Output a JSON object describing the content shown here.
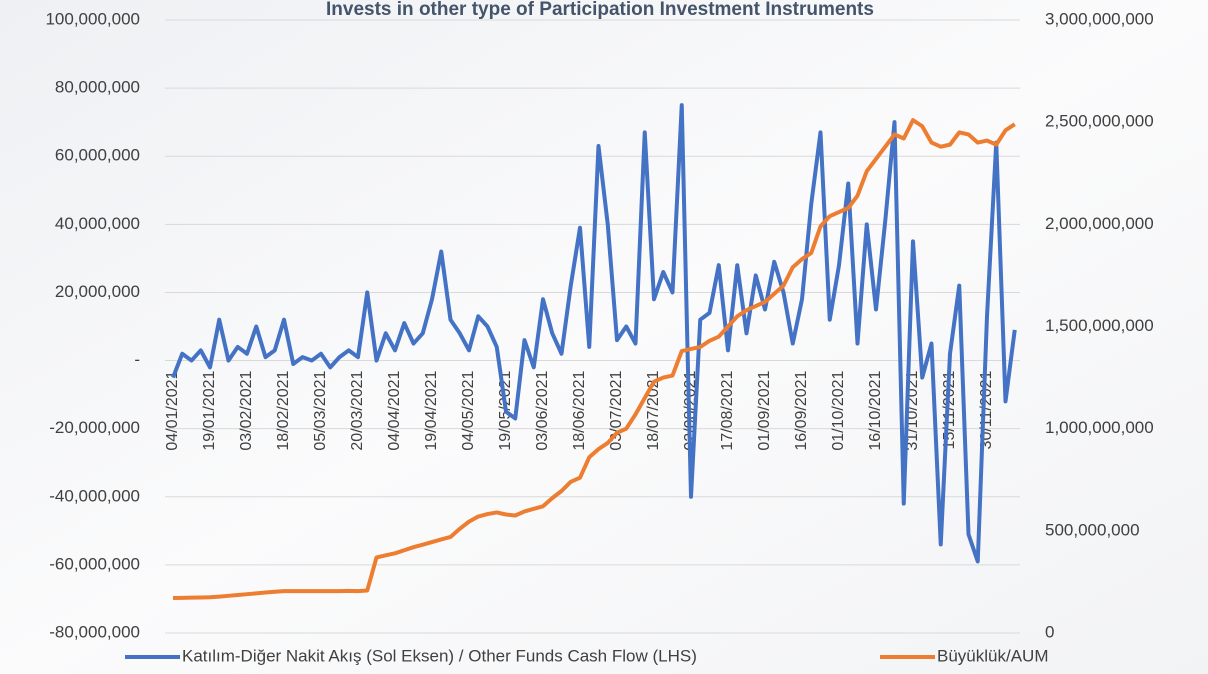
{
  "chart_data": {
    "type": "line",
    "title": "Invests in other type of Participation Investment Instruments",
    "categories": [
      "04/01/2021",
      null,
      null,
      null,
      "19/01/2021",
      null,
      null,
      null,
      "03/02/2021",
      null,
      null,
      null,
      "18/02/2021",
      null,
      null,
      null,
      "05/03/2021",
      null,
      null,
      null,
      "20/03/2021",
      null,
      null,
      null,
      "04/04/2021",
      null,
      null,
      null,
      "19/04/2021",
      null,
      null,
      null,
      "04/05/2021",
      null,
      null,
      null,
      "19/05/2021",
      null,
      null,
      null,
      "03/06/2021",
      null,
      null,
      null,
      "18/06/2021",
      null,
      null,
      null,
      "03/07/2021",
      null,
      null,
      null,
      "18/07/2021",
      null,
      null,
      null,
      "02/08/2021",
      null,
      null,
      null,
      "17/08/2021",
      null,
      null,
      null,
      "01/09/2021",
      null,
      null,
      null,
      "16/09/2021",
      null,
      null,
      null,
      "01/10/2021",
      null,
      null,
      null,
      "16/10/2021",
      null,
      null,
      null,
      "31/10/2021",
      null,
      null,
      null,
      "15/11/2021",
      null,
      null,
      null,
      "30/11/2021",
      null,
      null,
      null
    ],
    "series": [
      {
        "name": "Katılım-Diğer Nakit Akış (Sol Eksen) / Other Funds Cash Flow (LHS)",
        "color": "#4472c4",
        "axis": "y",
        "values": [
          -5000000,
          2000000,
          0,
          3000000,
          -2000000,
          12000000,
          0,
          4000000,
          2000000,
          10000000,
          1000000,
          3000000,
          12000000,
          -1000000,
          1000000,
          0,
          2000000,
          -2000000,
          1000000,
          3000000,
          1000000,
          20000000,
          0,
          8000000,
          3000000,
          11000000,
          5000000,
          8000000,
          18000000,
          32000000,
          12000000,
          8000000,
          3000000,
          13000000,
          10000000,
          4000000,
          -15000000,
          -17000000,
          6000000,
          -2000000,
          18000000,
          8000000,
          2000000,
          22000000,
          39000000,
          4000000,
          63000000,
          40000000,
          6000000,
          10000000,
          5000000,
          67000000,
          18000000,
          26000000,
          20000000,
          75000000,
          -40000000,
          12000000,
          14000000,
          28000000,
          3000000,
          28000000,
          8000000,
          25000000,
          15000000,
          29000000,
          20000000,
          5000000,
          18000000,
          46000000,
          67000000,
          12000000,
          28000000,
          52000000,
          5000000,
          40000000,
          15000000,
          41000000,
          70000000,
          -42000000,
          35000000,
          -5000000,
          5000000,
          -54000000,
          2000000,
          22000000,
          -51000000,
          -59000000,
          13000000,
          64000000,
          -12000000,
          9000000
        ]
      },
      {
        "name": "Büyüklük/AUM",
        "color": "#ed7d31",
        "axis": "y2",
        "values": [
          171000000,
          172000000,
          173000000,
          174000000,
          175000000,
          178000000,
          182000000,
          186000000,
          190000000,
          194000000,
          198000000,
          202000000,
          205000000,
          205000000,
          205000000,
          205000000,
          205000000,
          205000000,
          205000000,
          206000000,
          205000000,
          208000000,
          370000000,
          380000000,
          390000000,
          405000000,
          420000000,
          432000000,
          445000000,
          458000000,
          470000000,
          510000000,
          545000000,
          570000000,
          582000000,
          590000000,
          580000000,
          575000000,
          595000000,
          608000000,
          620000000,
          660000000,
          695000000,
          740000000,
          760000000,
          860000000,
          900000000,
          930000000,
          980000000,
          1000000000,
          1070000000,
          1150000000,
          1230000000,
          1250000000,
          1260000000,
          1380000000,
          1390000000,
          1400000000,
          1430000000,
          1450000000,
          1500000000,
          1550000000,
          1580000000,
          1600000000,
          1620000000,
          1660000000,
          1700000000,
          1790000000,
          1830000000,
          1860000000,
          1990000000,
          2040000000,
          2060000000,
          2080000000,
          2140000000,
          2260000000,
          2320000000,
          2380000000,
          2440000000,
          2420000000,
          2510000000,
          2480000000,
          2400000000,
          2380000000,
          2390000000,
          2450000000,
          2440000000,
          2400000000,
          2410000000,
          2390000000,
          2460000000,
          2490000000
        ]
      }
    ],
    "ylim": [
      -80000000,
      100000000
    ],
    "yticks": [
      {
        "value": -80000000,
        "label": "-80,000,000"
      },
      {
        "value": -60000000,
        "label": "-60,000,000"
      },
      {
        "value": -40000000,
        "label": "-40,000,000"
      },
      {
        "value": -20000000,
        "label": "-20,000,000"
      },
      {
        "value": 0,
        "label": "-"
      },
      {
        "value": 20000000,
        "label": "20,000,000"
      },
      {
        "value": 40000000,
        "label": "40,000,000"
      },
      {
        "value": 60000000,
        "label": "60,000,000"
      },
      {
        "value": 80000000,
        "label": "80,000,000"
      },
      {
        "value": 100000000,
        "label": "100,000,000"
      }
    ],
    "y2lim": [
      0,
      3000000000
    ],
    "y2ticks": [
      0,
      {
        "value": 500000000,
        "label": "500,000,000"
      },
      {
        "value": 1000000000,
        "label": "1,000,000,000"
      },
      {
        "value": 1500000000,
        "label": "1,500,000,000"
      },
      {
        "value": 2000000000,
        "label": "2,000,000,000"
      },
      {
        "value": 2500000000,
        "label": "2,500,000,000"
      },
      {
        "value": 3000000000,
        "label": "3,000,000,000"
      }
    ],
    "grid": true,
    "legend": "bottom"
  }
}
